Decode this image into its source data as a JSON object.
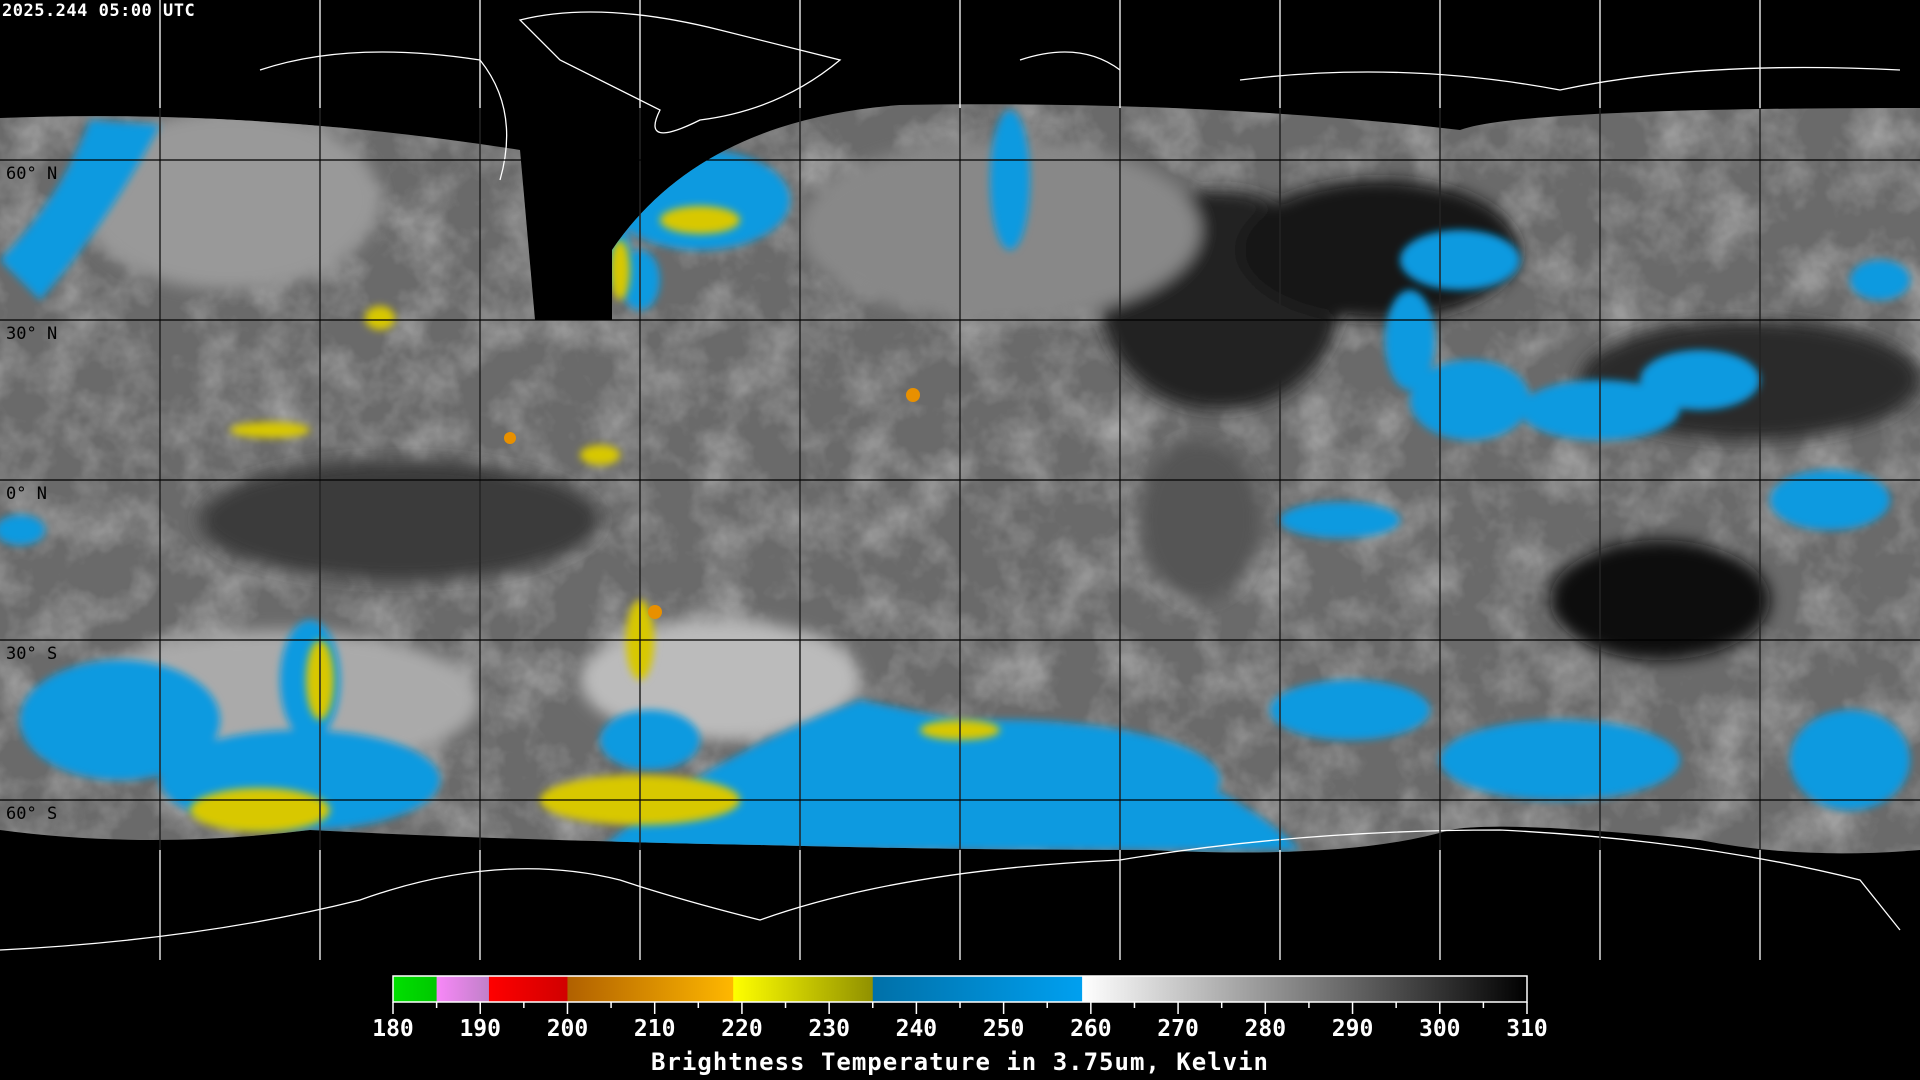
{
  "header": {
    "timestamp": "2025.244 05:00 UTC"
  },
  "map": {
    "projection": "equirectangular",
    "grid_spacing_deg": 30,
    "lat_labels": [
      "60° N",
      "30° N",
      "0° N",
      "30° S",
      "60° S"
    ]
  },
  "colorbar": {
    "title": "Brightness Temperature in 3.75um, Kelvin",
    "min": 180,
    "max": 310,
    "tick_labels": [
      "180",
      "190",
      "200",
      "210",
      "220",
      "230",
      "240",
      "250",
      "260",
      "270",
      "280",
      "290",
      "300",
      "310"
    ],
    "segments": [
      {
        "from": 180,
        "to": 185,
        "start": "#00e000",
        "end": "#00c800"
      },
      {
        "from": 185,
        "to": 191,
        "start": "#f888f8",
        "end": "#c080c8"
      },
      {
        "from": 191,
        "to": 200,
        "start": "#ff0000",
        "end": "#d00000"
      },
      {
        "from": 200,
        "to": 219,
        "start": "#b06000",
        "end": "#ffb800"
      },
      {
        "from": 219,
        "to": 235,
        "start": "#ffff00",
        "end": "#909000"
      },
      {
        "from": 235,
        "to": 259,
        "start": "#0070a8",
        "end": "#00a0f0"
      },
      {
        "from": 259,
        "to": 310,
        "start": "#ffffff",
        "end": "#000000"
      }
    ]
  }
}
